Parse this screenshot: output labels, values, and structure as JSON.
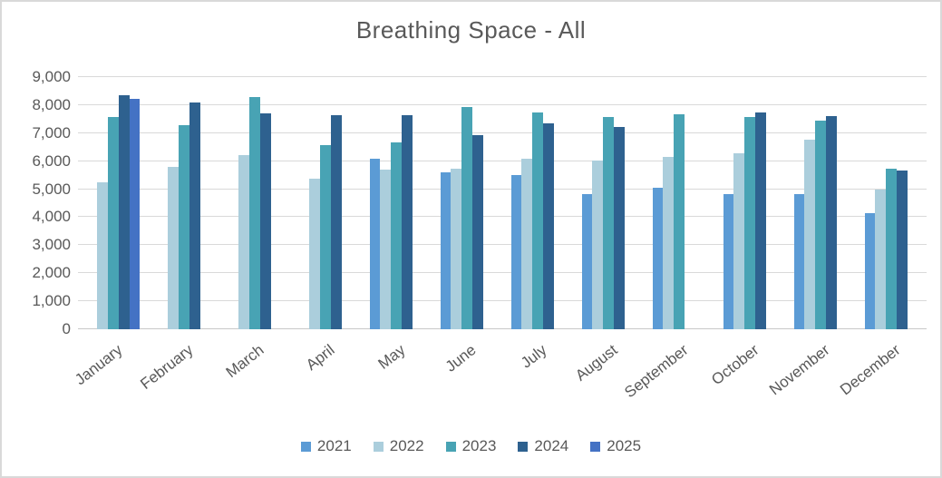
{
  "colors": {
    "background": "#ffffff",
    "border": "#d9d9d9",
    "gridline": "#d9d9d9",
    "axis_line": "#c8c8c8",
    "text": "#595959"
  },
  "chart_data": {
    "type": "bar",
    "title": "Breathing Space - All",
    "categories": [
      "January",
      "February",
      "March",
      "April",
      "May",
      "June",
      "July",
      "August",
      "September",
      "October",
      "November",
      "December"
    ],
    "series": [
      {
        "name": "2021",
        "color": "#5b9bd5",
        "values": [
          null,
          null,
          null,
          null,
          6100,
          5610,
          5520,
          4810,
          5050,
          4810,
          4810,
          4160
        ]
      },
      {
        "name": "2022",
        "color": "#abcedc",
        "values": [
          5260,
          5780,
          6230,
          5360,
          5710,
          5740,
          6090,
          6030,
          6160,
          6290,
          6770,
          5000
        ]
      },
      {
        "name": "2023",
        "color": "#48a3b4",
        "values": [
          7590,
          7300,
          8280,
          6580,
          6680,
          7940,
          7740,
          7580,
          7680,
          7580,
          7450,
          5740
        ]
      },
      {
        "name": "2024",
        "color": "#2e618f",
        "values": [
          8350,
          8100,
          7710,
          7650,
          7650,
          6940,
          7360,
          7230,
          null,
          7740,
          7610,
          5650
        ]
      },
      {
        "name": "2025",
        "color": "#4472c4",
        "values": [
          8230,
          null,
          null,
          null,
          null,
          null,
          null,
          null,
          null,
          null,
          null,
          null
        ]
      }
    ],
    "ylim": [
      0,
      9000
    ],
    "ytick_interval": 1000,
    "ytick_labels": [
      "0",
      "1,000",
      "2,000",
      "3,000",
      "4,000",
      "5,000",
      "6,000",
      "7,000",
      "8,000",
      "9,000"
    ],
    "grid": true,
    "legend_position": "bottom",
    "xlabel_rotation_deg": -38
  }
}
